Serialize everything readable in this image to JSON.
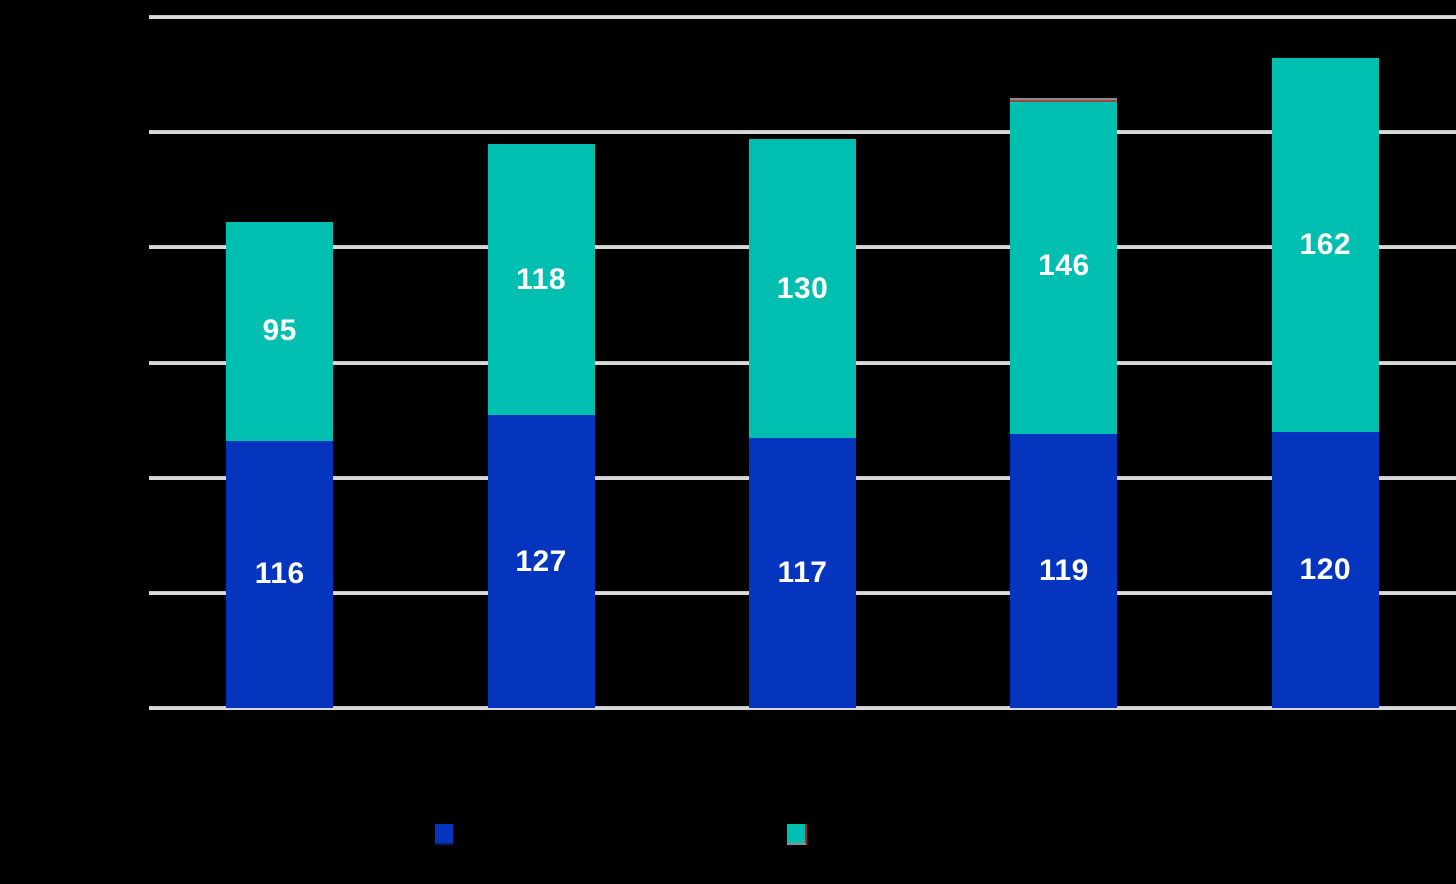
{
  "chart_data": {
    "type": "bar",
    "stacked": true,
    "orientation": "vertical",
    "title": "",
    "xlabel": "",
    "ylabel": "",
    "categories": [
      "",
      "",
      "",
      "",
      ""
    ],
    "series": [
      {
        "name": "blue-bottom-segment",
        "color": "#0535BE",
        "values": [
          116,
          127,
          117,
          119,
          120
        ]
      },
      {
        "name": "teal-top-segment",
        "color": "#00BFB1",
        "values": [
          95,
          118,
          130,
          146,
          162
        ]
      }
    ],
    "stack_totals": [
      211,
      245,
      247,
      265,
      282
    ],
    "value_label_color": "#FFFFFF",
    "ylim": [
      0,
      300
    ],
    "gridline_interval": 50,
    "grid": true,
    "gridline_color": "#D9D9D9",
    "background_color": "#000000",
    "axis_tick_labels_visible": false,
    "legend_position": "bottom"
  },
  "legend": {
    "items": [
      {
        "name": "blue-series",
        "swatch_color": "#0535BE",
        "label": ""
      },
      {
        "name": "teal-series",
        "swatch_color": "#00BFB1",
        "label": ""
      }
    ]
  },
  "artifacts": {
    "bar4_top_cap_gray": "#8C8C8C",
    "bar4_top_cap_red": "#9E4545",
    "teal_swatch_right_edge_color": "#C11B1B",
    "teal_swatch_bottom_edge_color": "#8F8F8F",
    "blue_swatch_bottom_edge_color": "#0D1F5C"
  }
}
